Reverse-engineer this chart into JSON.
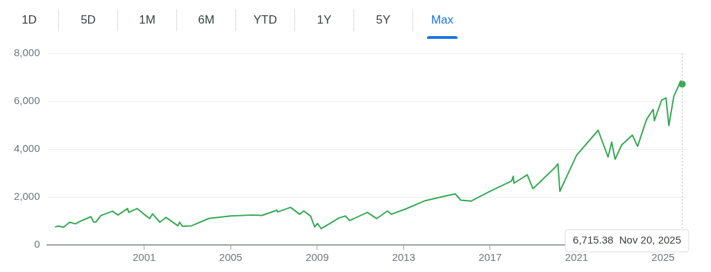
{
  "chart_data": {
    "type": "line",
    "color": "#34a853",
    "x": [
      "1996-11-15",
      "1997-01-15",
      "1997-04-10",
      "1997-07-20",
      "1997-10-27",
      "1998-01-10",
      "1998-07-15",
      "1998-08-31",
      "1998-10-08",
      "1998-12-31",
      "1999-07-15",
      "1999-10-15",
      "2000-03-24",
      "2000-04-14",
      "2000-09-01",
      "2000-12-20",
      "2001-04-04",
      "2001-05-21",
      "2001-09-21",
      "2002-01-04",
      "2002-07-23",
      "2002-08-22",
      "2002-10-09",
      "2003-03-11",
      "2003-12-31",
      "2004-12-31",
      "2005-12-31",
      "2006-06-13",
      "2007-02-20",
      "2007-03-05",
      "2007-10-09",
      "2008-03-10",
      "2008-05-19",
      "2008-09-12",
      "2008-11-20",
      "2009-01-06",
      "2009-03-09",
      "2009-12-31",
      "2010-04-23",
      "2010-07-02",
      "2011-04-29",
      "2011-10-03",
      "2012-04-02",
      "2012-06-04",
      "2013-01-31",
      "2013-12-31",
      "2014-12-29",
      "2015-05-21",
      "2015-08-25",
      "2016-02-11",
      "2016-12-30",
      "2017-12-29",
      "2018-01-26",
      "2018-02-08",
      "2018-09-20",
      "2018-12-24",
      "2019-12-31",
      "2020-02-19",
      "2020-03-23",
      "2020-12-31",
      "2021-12-31",
      "2022-06-16",
      "2022-08-16",
      "2022-10-12",
      "2023-02-02",
      "2023-07-31",
      "2023-10-27",
      "2024-03-28",
      "2024-07-16",
      "2024-08-05",
      "2024-12-06",
      "2025-02-19",
      "2025-04-08",
      "2025-06-30",
      "2025-10-28",
      "2025-11-20"
    ],
    "values": [
      750,
      790,
      740,
      950,
      880,
      980,
      1180,
      960,
      960,
      1230,
      1410,
      1250,
      1520,
      1360,
      1520,
      1300,
      1100,
      1300,
      950,
      1150,
      800,
      950,
      780,
      800,
      1110,
      1210,
      1250,
      1230,
      1450,
      1380,
      1570,
      1280,
      1420,
      1200,
      750,
      900,
      680,
      1120,
      1210,
      1020,
      1360,
      1100,
      1420,
      1280,
      1500,
      1850,
      2060,
      2130,
      1870,
      1830,
      2240,
      2670,
      2870,
      2580,
      2930,
      2350,
      3230,
      3390,
      2240,
      3750,
      4790,
      3670,
      4300,
      3580,
      4180,
      4590,
      4120,
      5250,
      5660,
      5190,
      6050,
      6140,
      4980,
      6200,
      6850,
      6715.38
    ],
    "xlim": [
      "1996-07-01",
      "2026-02-15"
    ],
    "xticks": [
      "2001",
      "2005",
      "2009",
      "2013",
      "2017",
      "2021",
      "2025"
    ],
    "ylim": [
      0,
      8000
    ],
    "yticks": [
      0,
      {
        "value": 2000,
        "label": "2,000"
      },
      {
        "value": 4000,
        "label": "4,000"
      },
      {
        "value": 6000,
        "label": "6,000"
      },
      {
        "value": 8000,
        "label": "8,000"
      }
    ],
    "grid": "y",
    "ref_lines": [
      {
        "axis": "x",
        "value": "2025-11-20",
        "line_style": "dotted",
        "color": "#bdbdbd"
      }
    ],
    "annotations": [
      "1D",
      "5D",
      "1M",
      "6M",
      "YTD",
      "1Y",
      "5Y",
      "Max",
      "6,715.38  Nov 20, 2025"
    ]
  }
}
